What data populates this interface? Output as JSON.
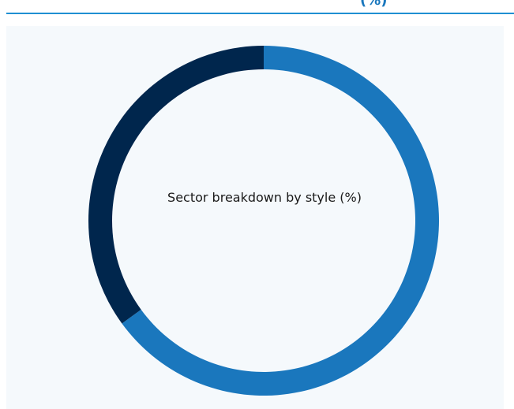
{
  "header": {
    "partial_text": "(%)"
  },
  "chart_data": {
    "type": "pie",
    "variant": "donut",
    "title": "Sector breakdown by style (%)",
    "categories": [
      "",
      ""
    ],
    "values": [
      65,
      35
    ],
    "colors": [
      "#1a77bd",
      "#00264d"
    ],
    "start_angle_deg": 0,
    "direction": "clockwise",
    "legend": "none"
  },
  "colors": {
    "accent_rule": "#1f8fd2",
    "panel_background": "#f5f9fc"
  }
}
